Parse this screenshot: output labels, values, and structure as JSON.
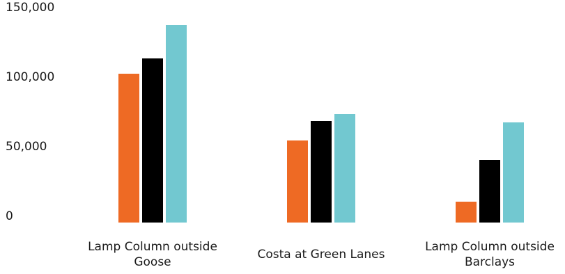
{
  "chart_data": {
    "type": "bar",
    "title": "",
    "xlabel": "",
    "ylabel": "",
    "ylim": [
      0,
      150000
    ],
    "yticks": [
      0,
      50000,
      100000,
      150000
    ],
    "ytick_labels": [
      "0",
      "50,000",
      "100,000",
      "150,000"
    ],
    "grid": false,
    "legend": "none",
    "categories": [
      [
        "Lamp Column outside",
        "Goose"
      ],
      [
        "Costa at Green Lanes"
      ],
      [
        "Lamp Column outside",
        "Barclays"
      ]
    ],
    "series": [
      {
        "color": "#ee6a24",
        "values": [
          107000,
          59000,
          15000
        ]
      },
      {
        "color": "#000000",
        "values": [
          118000,
          73000,
          45000
        ]
      },
      {
        "color": "#72c8d0",
        "values": [
          142000,
          78000,
          72000
        ]
      }
    ]
  }
}
